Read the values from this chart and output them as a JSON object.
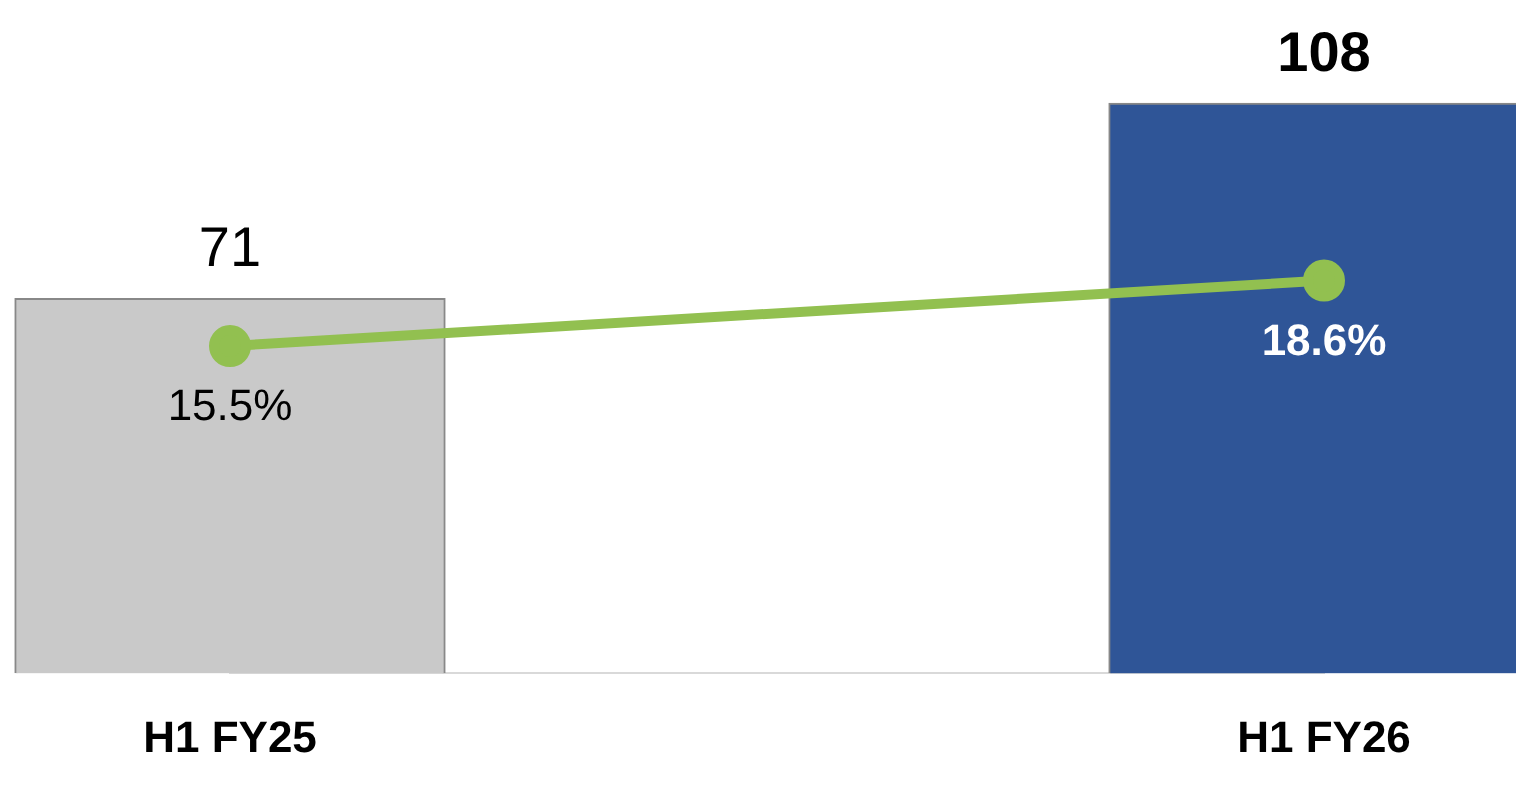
{
  "chart_data": {
    "type": "bar",
    "categories": [
      "H1 FY25",
      "H1 FY26"
    ],
    "series": [
      {
        "colors": [
          "#c9c9c9",
          "#2f5597"
        ],
        "values": [
          71,
          108
        ]
      },
      {
        "type": "line",
        "axis": "y2",
        "color": "#92c050",
        "values": [
          15.5,
          18.6
        ],
        "value_labels": [
          "15.5%",
          "18.6%"
        ]
      }
    ],
    "data_labels": true,
    "tick_labels": "x",
    "grid": false,
    "legend": false,
    "marker": "circle"
  }
}
